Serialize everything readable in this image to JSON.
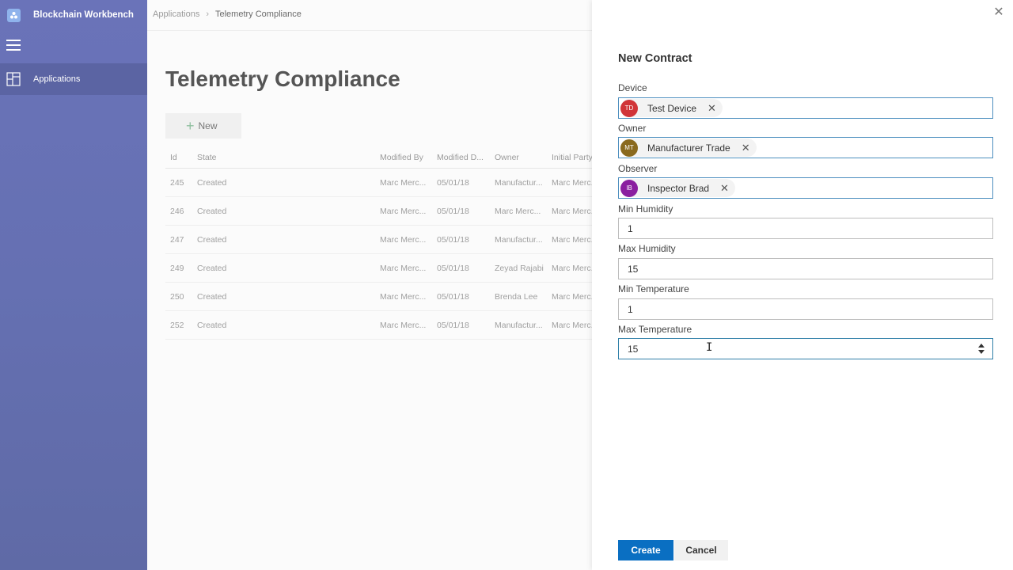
{
  "app": {
    "brand_name": "Blockchain Workbench",
    "brand_icon": "blockchain-logo-icon"
  },
  "sidebar": {
    "menu_icon": "hamburger-icon",
    "items": [
      {
        "label": "Applications",
        "icon": "applications-icon"
      }
    ]
  },
  "breadcrumb": {
    "root": "Applications",
    "current": "Telemetry Compliance"
  },
  "main": {
    "title": "Telemetry Compliance",
    "new_label": "New",
    "columns": [
      "Id",
      "State",
      "Modified By",
      "Modified D...",
      "Owner",
      "Initial Party"
    ],
    "rows": [
      {
        "id": "245",
        "state": "Created",
        "modified_by": "Marc Merc...",
        "modified_date": "05/01/18",
        "owner": "Manufactur...",
        "initial_party": "Marc Merc..."
      },
      {
        "id": "246",
        "state": "Created",
        "modified_by": "Marc Merc...",
        "modified_date": "05/01/18",
        "owner": "Marc Merc...",
        "initial_party": "Marc Merc..."
      },
      {
        "id": "247",
        "state": "Created",
        "modified_by": "Marc Merc...",
        "modified_date": "05/01/18",
        "owner": "Manufactur...",
        "initial_party": "Marc Merc..."
      },
      {
        "id": "249",
        "state": "Created",
        "modified_by": "Marc Merc...",
        "modified_date": "05/01/18",
        "owner": "Zeyad Rajabi",
        "initial_party": "Marc Merc..."
      },
      {
        "id": "250",
        "state": "Created",
        "modified_by": "Marc Merc...",
        "modified_date": "05/01/18",
        "owner": "Brenda Lee",
        "initial_party": "Marc Merc..."
      },
      {
        "id": "252",
        "state": "Created",
        "modified_by": "Marc Merc...",
        "modified_date": "05/01/18",
        "owner": "Manufactur...",
        "initial_party": "Marc Merc..."
      }
    ]
  },
  "panel": {
    "title": "New Contract",
    "device": {
      "label": "Device",
      "initials": "TD",
      "name": "Test Device",
      "color": "#d13438"
    },
    "owner": {
      "label": "Owner",
      "initials": "MT",
      "name": "Manufacturer Trade",
      "color": "#8a6a1e"
    },
    "observer": {
      "label": "Observer",
      "initials": "IB",
      "name": "Inspector Brad",
      "color": "#8b1fa0"
    },
    "min_humidity": {
      "label": "Min Humidity",
      "value": "1"
    },
    "max_humidity": {
      "label": "Max Humidity",
      "value": "15"
    },
    "min_temperature": {
      "label": "Min Temperature",
      "value": "1"
    },
    "max_temperature": {
      "label": "Max Temperature",
      "value": "15"
    },
    "create_label": "Create",
    "cancel_label": "Cancel",
    "accent_color": "#0a6fc2"
  }
}
